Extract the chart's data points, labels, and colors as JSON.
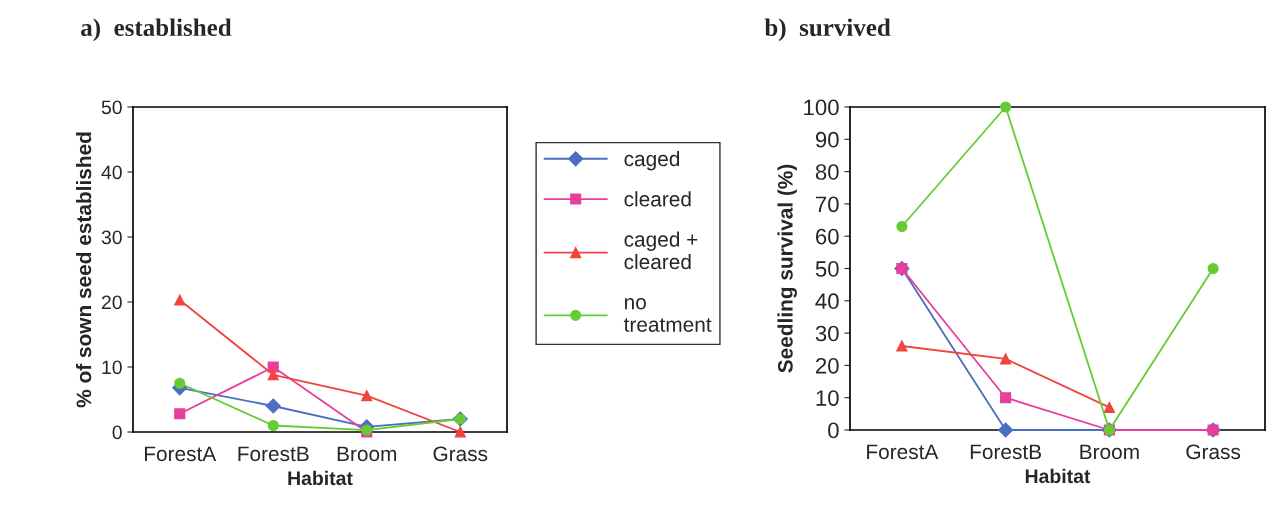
{
  "chart_data": [
    {
      "type": "line",
      "title": "a)  established",
      "xlabel": "Habitat",
      "ylabel": "% of sown seed established",
      "categories": [
        "ForestA",
        "ForestB",
        "Broom",
        "Grass"
      ],
      "ylim": [
        0,
        50
      ],
      "yticks": [
        0,
        10,
        20,
        30,
        40,
        50
      ],
      "grid": false,
      "legend": "right",
      "series": [
        {
          "name": "caged",
          "color": "#4a6fc0",
          "marker": "diamond",
          "values": [
            6.8,
            4,
            0.8,
            2
          ]
        },
        {
          "name": "cleared",
          "color": "#e83e9c",
          "marker": "square",
          "values": [
            2.8,
            10,
            0,
            null
          ]
        },
        {
          "name": "caged +\ncleared",
          "color": "#f0443c",
          "marker": "triangle",
          "values": [
            20.3,
            8.8,
            5.6,
            0
          ]
        },
        {
          "name": "no\ntreatment",
          "color": "#66cc33",
          "marker": "circle",
          "values": [
            7.5,
            1,
            0.3,
            2
          ]
        }
      ]
    },
    {
      "type": "line",
      "title": "b)  survived",
      "xlabel": "Habitat",
      "ylabel": "Seedling survival (%)",
      "categories": [
        "ForestA",
        "ForestB",
        "Broom",
        "Grass"
      ],
      "ylim": [
        0,
        100
      ],
      "yticks": [
        0,
        10,
        20,
        30,
        40,
        50,
        60,
        70,
        80,
        90,
        100
      ],
      "grid": false,
      "series": [
        {
          "color": "#4a6fc0",
          "marker": "diamond",
          "values": [
            50,
            0,
            0,
            0
          ]
        },
        {
          "color": "#e83e9c",
          "marker": "square",
          "values": [
            50,
            10,
            0,
            0
          ]
        },
        {
          "color": "#f0443c",
          "marker": "triangle",
          "values": [
            26,
            22,
            7,
            null
          ]
        },
        {
          "color": "#66cc33",
          "marker": "circle",
          "values": [
            63,
            100,
            0,
            50
          ]
        }
      ]
    }
  ]
}
